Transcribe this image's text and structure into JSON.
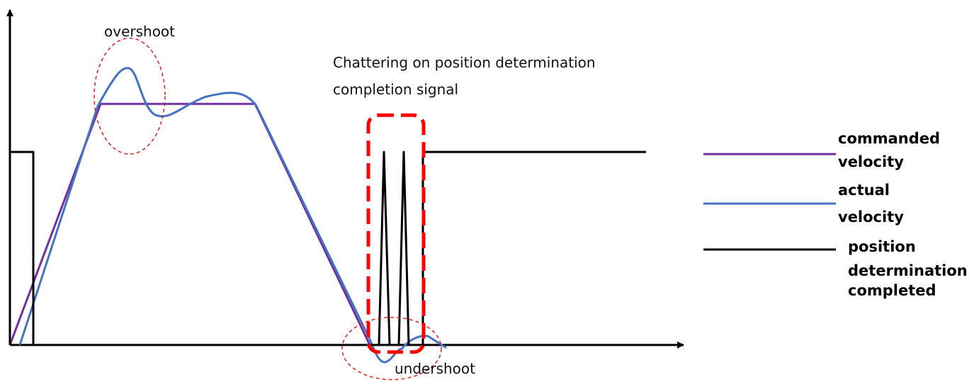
{
  "annotations": {
    "overshoot": "overshoot",
    "chattering": [
      "Chattering on position determination",
      "completion signal"
    ],
    "undershoot": "undershoot"
  },
  "legend": [
    {
      "label": [
        "commanded",
        "velocity"
      ],
      "color": "#7030a0"
    },
    {
      "label": [
        "actual",
        "velocity"
      ],
      "color": "#4472c4"
    },
    {
      "label": [
        "position",
        "determination",
        "completed"
      ],
      "color": "#000000"
    }
  ]
}
